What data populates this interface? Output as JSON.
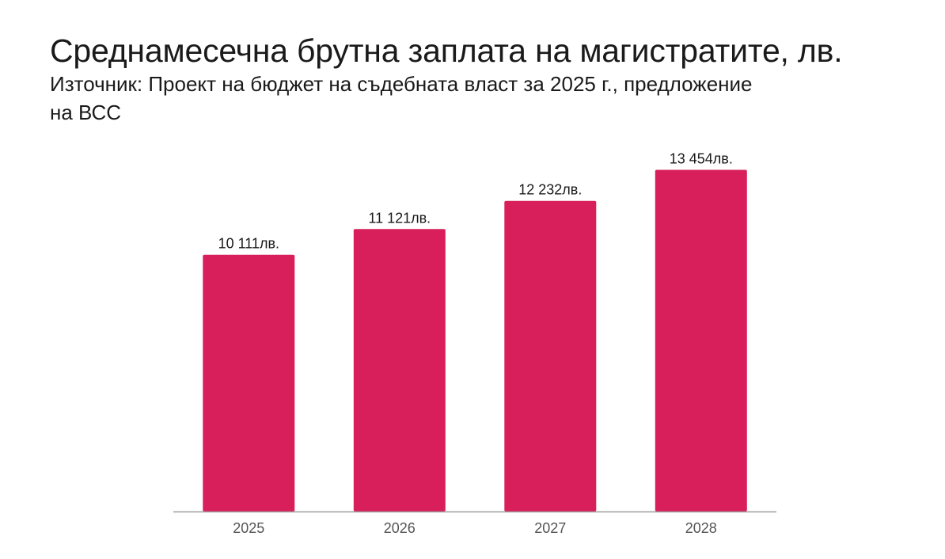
{
  "chart_data": {
    "type": "bar",
    "title": "Среднамесечна брутна заплата на магистратите, лв.",
    "subtitle": "Източник: Проект на бюджет на съдебната власт за 2025 г., предложение на ВСС",
    "categories": [
      "2025",
      "2026",
      "2027",
      "2028"
    ],
    "values": [
      10111,
      11121,
      12232,
      13454
    ],
    "data_labels": [
      "10 111лв.",
      "11 121лв.",
      "12 232лв.",
      "13 454лв."
    ],
    "xlabel": "",
    "ylabel": "",
    "ylim": [
      0,
      14000
    ],
    "grid": false,
    "legend": "none",
    "bar_color": "#d81f5b"
  }
}
